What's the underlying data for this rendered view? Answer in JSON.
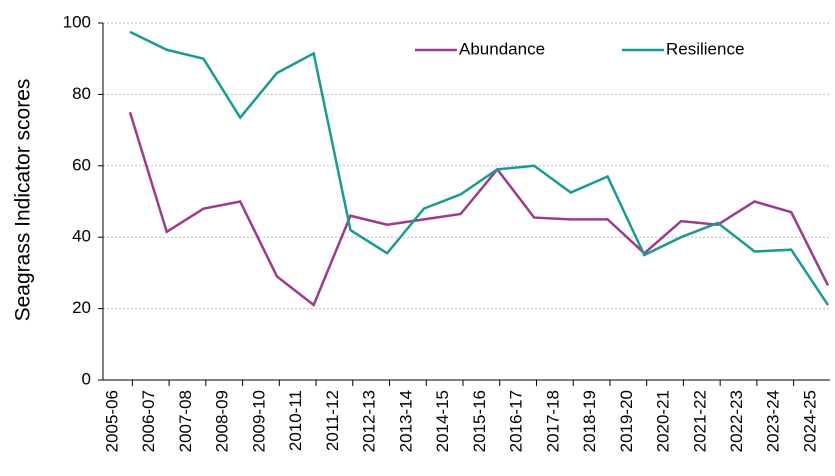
{
  "chart_data": {
    "type": "line",
    "y_label": "Seagrass Indicator scores",
    "categories": [
      "2005-06",
      "2006-07",
      "2007-08",
      "2008-09",
      "2009-10",
      "2010-11",
      "2011-12",
      "2012-13",
      "2013-14",
      "2014-15",
      "2015-16",
      "2016-17",
      "2017-18",
      "2018-19",
      "2019-20",
      "2020-21",
      "2021-22",
      "2022-23",
      "2023-24",
      "2024-25"
    ],
    "series": [
      {
        "name": "Abundance",
        "color": "#9c3b8c",
        "values": [
          75,
          41.5,
          48,
          50,
          29,
          21,
          46,
          43.5,
          45,
          46.5,
          59,
          45.5,
          45,
          45,
          35.5,
          44.5,
          43.5,
          50,
          47,
          26.5
        ]
      },
      {
        "name": "Resilience",
        "color": "#1a9a90",
        "values": [
          97.5,
          92.5,
          90,
          73.5,
          86,
          91.5,
          42,
          35.5,
          48,
          52,
          59,
          60,
          52.5,
          57,
          35,
          40,
          44,
          36,
          36.5,
          21
        ]
      }
    ],
    "ylim": [
      0,
      100
    ],
    "yticks": [
      0,
      20,
      40,
      60,
      80,
      100
    ],
    "grid": true
  }
}
